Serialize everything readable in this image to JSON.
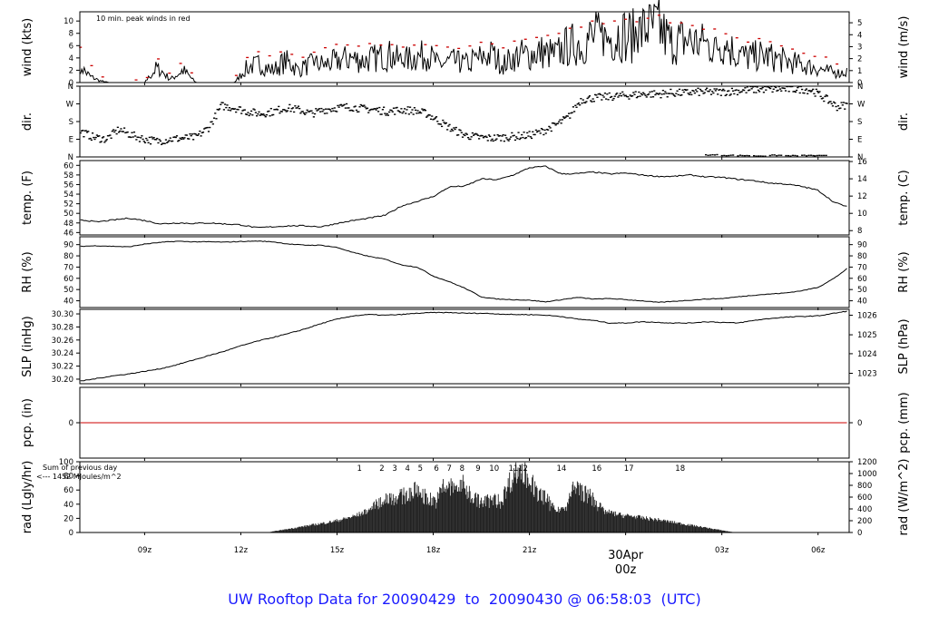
{
  "footer": {
    "prefix": "UW Rooftop Data for",
    "start": "20090429",
    "to": "to",
    "end": "20090430",
    "at": "@",
    "time": "06:58:03",
    "zone": "(UTC)",
    "color": "#1a1aff"
  },
  "xaxis": {
    "ticks": [
      "09z",
      "12z",
      "15z",
      "18z",
      "21z",
      "00z",
      "03z",
      "06z"
    ],
    "tick_hours": [
      9,
      12,
      15,
      18,
      21,
      24,
      27,
      30
    ],
    "xlim_hours": [
      6.98,
      30.97
    ],
    "date_marker": {
      "date": "30Apr",
      "label": "00z",
      "hour": 24,
      "color": "#cc0000"
    }
  },
  "chart_data": [
    {
      "type": "line",
      "id": "wind",
      "ylabel_left": "wind (kts)",
      "ylabel_right": "wind (m/s)",
      "ylim": [
        0,
        11.5
      ],
      "yticks_left": [
        0,
        2,
        4,
        6,
        8,
        10
      ],
      "yticks_right": [
        0,
        1,
        2,
        3,
        4,
        5
      ],
      "annotation": "10 min. peak winds in red",
      "annotation_color": "#cc0000",
      "x": [
        7.0,
        7.1,
        7.3,
        7.6,
        7.9,
        8.2,
        8.6,
        9.0,
        9.4,
        9.8,
        10.2,
        10.6,
        11.0,
        11.4,
        11.8,
        12.2,
        12.6,
        13.0,
        13.4,
        13.8,
        14.2,
        14.6,
        15.0,
        15.4,
        15.8,
        16.2,
        16.6,
        17.0,
        17.4,
        17.8,
        18.2,
        18.6,
        19.0,
        19.4,
        19.8,
        20.2,
        20.6,
        21.0,
        21.4,
        21.8,
        22.2,
        22.6,
        23.0,
        23.4,
        23.8,
        24.2,
        24.6,
        25.0,
        25.4,
        25.8,
        26.2,
        26.6,
        27.0,
        27.4,
        27.8,
        28.2,
        28.6,
        29.0,
        29.4,
        29.8,
        30.2,
        30.6,
        30.9
      ],
      "values": [
        3.5,
        2.0,
        1.0,
        0.3,
        0.0,
        0.0,
        0.0,
        0.0,
        2.5,
        0.5,
        2.0,
        0.0,
        0.0,
        0.0,
        0.0,
        2.5,
        3.0,
        2.0,
        3.5,
        2.0,
        3.0,
        3.0,
        3.5,
        4.0,
        3.5,
        4.0,
        4.5,
        3.5,
        4.0,
        4.5,
        3.0,
        3.5,
        3.0,
        4.0,
        4.5,
        3.0,
        4.5,
        4.5,
        5.0,
        4.5,
        6.0,
        6.5,
        7.5,
        7.0,
        8.0,
        7.5,
        8.5,
        9.0,
        6.5,
        7.0,
        6.5,
        6.0,
        6.5,
        5.0,
        4.0,
        4.5,
        4.0,
        3.5,
        3.0,
        2.5,
        2.0,
        1.5,
        1.8
      ],
      "peaks": [
        5.5,
        4.0,
        3.0,
        1.0,
        0.2,
        0.2,
        0.2,
        0.2,
        3.8,
        1.5,
        3.5,
        0.5,
        0.2,
        0.2,
        0.5,
        4.0,
        5.0,
        4.0,
        5.5,
        4.0,
        5.0,
        5.5,
        6.0,
        6.2,
        6.0,
        6.3,
        6.5,
        6.0,
        6.3,
        6.5,
        5.5,
        5.8,
        5.5,
        6.3,
        6.5,
        5.5,
        6.8,
        7.0,
        7.5,
        7.5,
        8.5,
        9.0,
        10.0,
        9.8,
        10.3,
        10.0,
        10.5,
        11.0,
        9.5,
        9.5,
        9.2,
        8.5,
        8.5,
        7.5,
        6.5,
        7.0,
        6.5,
        5.5,
        5.0,
        4.5,
        4.0,
        3.3,
        3.0
      ]
    },
    {
      "type": "scatter",
      "id": "dir",
      "ylabel_left": "dir.",
      "ylabel_right": "dir.",
      "ylim": [
        0,
        360
      ],
      "yticks_left_labels": [
        "N",
        "E",
        "S",
        "W",
        "N"
      ],
      "yticks_right_labels": [
        "N",
        "E",
        "S",
        "W",
        "N"
      ],
      "ytick_values": [
        0,
        90,
        180,
        270,
        360
      ],
      "x": [
        7.0,
        7.4,
        7.8,
        8.2,
        8.6,
        9.0,
        9.4,
        9.8,
        10.2,
        10.6,
        11.0,
        11.4,
        11.8,
        12.2,
        12.6,
        13.0,
        13.4,
        13.8,
        14.2,
        14.6,
        15.0,
        15.4,
        15.8,
        16.2,
        16.6,
        17.0,
        17.4,
        17.8,
        18.2,
        18.6,
        19.0,
        19.4,
        19.8,
        20.2,
        20.6,
        21.0,
        21.4,
        21.8,
        22.2,
        22.6,
        23.0,
        23.4,
        23.8,
        24.2,
        24.6,
        25.0,
        25.4,
        25.8,
        26.2,
        26.6,
        27.0,
        27.4,
        27.8,
        28.2,
        28.6,
        29.0,
        29.4,
        29.8,
        30.2,
        30.6,
        30.9
      ],
      "values": [
        130,
        100,
        90,
        140,
        110,
        90,
        80,
        90,
        95,
        100,
        150,
        260,
        250,
        230,
        220,
        230,
        250,
        240,
        220,
        240,
        250,
        255,
        245,
        240,
        230,
        240,
        235,
        220,
        180,
        140,
        110,
        100,
        95,
        100,
        105,
        110,
        130,
        160,
        200,
        290,
        300,
        305,
        310,
        315,
        320,
        320,
        325,
        325,
        330,
        330,
        330,
        335,
        340,
        345,
        345,
        345,
        345,
        340,
        300,
        255,
        265
      ],
      "extra_x": [
        26.5,
        27.0,
        27.5,
        28.0,
        28.5,
        29.0,
        29.5,
        29.9
      ],
      "extra_values": [
        10,
        8,
        7,
        5,
        8,
        6,
        7,
        6
      ]
    },
    {
      "type": "line",
      "id": "temp",
      "ylabel_left": "temp. (F)",
      "ylabel_right": "temp. (C)",
      "ylim": [
        45.5,
        61
      ],
      "yticks_left": [
        46,
        48,
        50,
        52,
        54,
        56,
        58,
        60
      ],
      "yticks_right_labels": [
        "8",
        "10",
        "12",
        "14",
        "16"
      ],
      "yticks_right_f": [
        46.4,
        50,
        53.6,
        57.2,
        60.8
      ],
      "x": [
        7.0,
        7.5,
        8.0,
        8.5,
        9.0,
        9.5,
        10.0,
        10.5,
        11.0,
        11.5,
        12.0,
        12.5,
        13.0,
        13.5,
        14.0,
        14.5,
        15.0,
        15.5,
        16.0,
        16.5,
        17.0,
        17.5,
        18.0,
        18.5,
        19.0,
        19.5,
        20.0,
        20.5,
        21.0,
        21.5,
        22.0,
        22.5,
        23.0,
        23.5,
        24.0,
        24.5,
        25.0,
        25.5,
        26.0,
        26.5,
        27.0,
        27.5,
        28.0,
        28.5,
        29.0,
        29.5,
        30.0,
        30.5,
        30.9
      ],
      "values": [
        48.7,
        48.2,
        48.6,
        49.0,
        48.5,
        47.8,
        48.0,
        47.9,
        48.0,
        47.8,
        47.6,
        47.0,
        47.2,
        47.4,
        47.4,
        47.2,
        47.9,
        48.5,
        49.0,
        49.6,
        51.5,
        52.5,
        53.5,
        55.5,
        55.7,
        57.2,
        57.0,
        58.0,
        59.5,
        59.8,
        58.2,
        58.3,
        58.6,
        58.2,
        58.4,
        58.0,
        57.7,
        57.7,
        58.0,
        57.6,
        57.5,
        57.1,
        56.8,
        56.3,
        56.1,
        55.6,
        54.8,
        52.3,
        51.4
      ]
    },
    {
      "type": "line",
      "id": "rh",
      "ylabel_left": "RH (%)",
      "ylabel_right": "RH (%)",
      "ylim": [
        34,
        97
      ],
      "yticks_left": [
        40,
        50,
        60,
        70,
        80,
        90
      ],
      "yticks_right": [
        40,
        50,
        60,
        70,
        80,
        90
      ],
      "x": [
        7.0,
        7.5,
        8.0,
        8.5,
        9.0,
        9.5,
        10.0,
        10.5,
        11.0,
        11.5,
        12.0,
        12.5,
        13.0,
        13.5,
        14.0,
        14.5,
        15.0,
        15.5,
        16.0,
        16.5,
        17.0,
        17.5,
        18.0,
        18.5,
        19.0,
        19.5,
        20.0,
        20.5,
        21.0,
        21.5,
        22.0,
        22.5,
        23.0,
        23.5,
        24.0,
        24.5,
        25.0,
        25.5,
        26.0,
        26.5,
        27.0,
        27.5,
        28.0,
        28.5,
        29.0,
        29.5,
        30.0,
        30.5,
        30.9
      ],
      "values": [
        88.5,
        89.0,
        88.5,
        88.0,
        90.5,
        92.0,
        93.0,
        92.5,
        92.5,
        92.2,
        92.8,
        93.2,
        92.5,
        90.5,
        89.5,
        89.5,
        87.5,
        83.0,
        79.5,
        77.0,
        72.0,
        70.0,
        62.0,
        57.0,
        51.0,
        43.5,
        41.5,
        41.0,
        40.5,
        39.0,
        41.0,
        43.0,
        41.5,
        42.0,
        41.0,
        40.0,
        38.5,
        39.5,
        40.5,
        41.5,
        42.0,
        43.5,
        45.0,
        46.0,
        47.0,
        49.0,
        52.0,
        60.0,
        68.5
      ]
    },
    {
      "type": "line",
      "id": "slp",
      "ylabel_left": "SLP (inHg)",
      "ylabel_right": "SLP (hPa)",
      "ylim": [
        30.193,
        30.307
      ],
      "yticks_left_labels": [
        "30.20",
        "30.22",
        "30.24",
        "30.26",
        "30.28",
        "30.30"
      ],
      "yticks_left": [
        30.2,
        30.22,
        30.24,
        30.26,
        30.28,
        30.3
      ],
      "yticks_right_labels": [
        "1023",
        "1024",
        "1025",
        "1026"
      ],
      "yticks_right_inhg": [
        30.209,
        30.239,
        30.268,
        30.298
      ],
      "x": [
        7.0,
        7.5,
        8.0,
        8.5,
        9.0,
        9.5,
        10.0,
        10.5,
        11.0,
        11.5,
        12.0,
        12.5,
        13.0,
        13.5,
        14.0,
        14.5,
        15.0,
        15.5,
        16.0,
        16.5,
        17.0,
        17.5,
        18.0,
        18.5,
        19.0,
        19.5,
        20.0,
        20.5,
        21.0,
        21.5,
        22.0,
        22.5,
        23.0,
        23.5,
        24.0,
        24.5,
        25.0,
        25.5,
        26.0,
        26.5,
        27.0,
        27.5,
        28.0,
        28.5,
        29.0,
        29.5,
        30.0,
        30.5,
        30.9
      ],
      "values": [
        30.197,
        30.201,
        30.205,
        30.208,
        30.212,
        30.216,
        30.222,
        30.229,
        30.236,
        30.243,
        30.251,
        30.258,
        30.264,
        30.27,
        30.277,
        30.285,
        30.292,
        30.297,
        30.299,
        30.298,
        30.299,
        30.301,
        30.302,
        30.302,
        30.301,
        30.301,
        30.3,
        30.299,
        30.299,
        30.298,
        30.296,
        30.292,
        30.29,
        30.286,
        30.286,
        30.288,
        30.287,
        30.286,
        30.286,
        30.288,
        30.287,
        30.286,
        30.29,
        30.293,
        30.295,
        30.296,
        30.297,
        30.301,
        30.304
      ]
    },
    {
      "type": "line",
      "id": "pcp",
      "ylabel_left": "pcp. (in)",
      "ylabel_right": "pcp. (mm)",
      "ylim": [
        -1,
        1
      ],
      "yticks_left": [
        0
      ],
      "yticks_right": [
        0
      ],
      "x": [
        7.0,
        30.9
      ],
      "values": [
        0,
        0
      ],
      "line_color": "#cc0000"
    },
    {
      "type": "area",
      "id": "rad",
      "ylabel_left": "rad (Lgly/hr)",
      "ylabel_right": "rad (W/m^2)",
      "ylim": [
        0,
        100
      ],
      "yticks_left": [
        0,
        20,
        40,
        60,
        80,
        100
      ],
      "yticks_right": [
        0,
        200,
        400,
        600,
        800,
        1000,
        1200
      ],
      "sum_label": "Sum of previous day",
      "sum_value": "<--- 1452 MJoules/m^2",
      "hour_labels": [
        "1",
        "2",
        "3",
        "4",
        "5",
        "6",
        "7",
        "8",
        "9",
        "10",
        "11",
        "12",
        "14",
        "16",
        "17",
        "18"
      ],
      "hour_label_x": [
        15.7,
        16.4,
        16.8,
        17.2,
        17.6,
        18.1,
        18.5,
        18.9,
        19.4,
        19.9,
        20.5,
        20.8,
        22.0,
        23.1,
        24.1,
        25.7
      ],
      "label_color": "#9900cc",
      "x": [
        12.8,
        13.2,
        13.6,
        14.0,
        14.4,
        14.8,
        15.2,
        15.6,
        16.0,
        16.3,
        16.6,
        16.9,
        17.2,
        17.5,
        17.8,
        18.1,
        18.3,
        18.6,
        18.9,
        19.2,
        19.5,
        19.8,
        20.1,
        20.4,
        20.6,
        20.8,
        21.0,
        21.2,
        21.5,
        21.8,
        22.1,
        22.4,
        22.7,
        23.0,
        23.3,
        23.6,
        23.9,
        24.2,
        24.6,
        25.0,
        25.4,
        25.8,
        26.2,
        26.6,
        27.0,
        27.4
      ],
      "values": [
        0,
        3,
        6,
        9,
        12,
        15,
        19,
        24,
        32,
        45,
        55,
        53,
        58,
        65,
        52,
        48,
        70,
        68,
        72,
        55,
        45,
        50,
        47,
        80,
        96,
        91,
        82,
        60,
        52,
        30,
        36,
        70,
        60,
        50,
        30,
        27,
        24,
        23,
        20,
        18,
        15,
        12,
        9,
        6,
        3,
        0
      ]
    }
  ]
}
